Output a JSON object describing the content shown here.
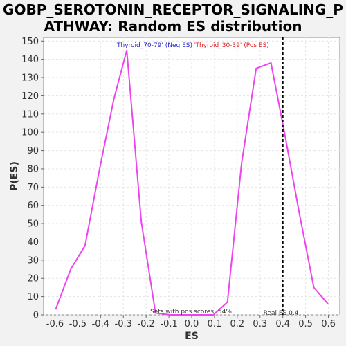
{
  "chart_data": {
    "type": "line",
    "title_line1": "GOBP_SEROTONIN_RECEPTOR_SIGNALING_P",
    "title_line2": "ATHWAY: Random ES distribution",
    "xlabel": "ES",
    "ylabel": "P(ES)",
    "xlim": [
      -0.65,
      0.65
    ],
    "ylim": [
      0,
      152
    ],
    "x_ticks": [
      -0.6,
      -0.5,
      -0.4,
      -0.3,
      -0.2,
      -0.1,
      0.0,
      0.1,
      0.2,
      0.3,
      0.4,
      0.5,
      0.6
    ],
    "x_tick_labels": [
      "-0.6",
      "-0.5",
      "-0.4",
      "-0.3",
      "-0.2",
      "-0.1",
      "0.0",
      "0.1",
      "0.2",
      "0.3",
      "0.4",
      "0.5",
      "0.6"
    ],
    "y_ticks": [
      0,
      10,
      20,
      30,
      40,
      50,
      60,
      70,
      80,
      90,
      100,
      110,
      120,
      130,
      140,
      150
    ],
    "y_tick_labels": [
      "0",
      "10",
      "20",
      "30",
      "40",
      "50",
      "60",
      "70",
      "80",
      "90",
      "100",
      "110",
      "120",
      "130",
      "140",
      "150"
    ],
    "grid": true,
    "series": [
      {
        "color": "#ee44ee",
        "x": [
          -0.597,
          -0.531,
          -0.468,
          -0.404,
          -0.342,
          -0.285,
          -0.221,
          -0.159,
          -0.095,
          -0.032,
          0.032,
          0.095,
          0.157,
          0.219,
          0.283,
          0.348,
          0.41,
          0.472,
          0.536,
          0.598
        ],
        "y": [
          3,
          25,
          38,
          80,
          118,
          145,
          51,
          1,
          0,
          0,
          0,
          0,
          7,
          83,
          135,
          138,
          98,
          56,
          15,
          6
        ]
      }
    ],
    "real_es": 0.4,
    "real_es_color": "#000000",
    "neg_label": "'Thyroid_70-79' (Neg ES)",
    "neg_label_color": "#2222cc",
    "pos_label": "'Thyroid_30-39' (Pos ES)",
    "pos_label_color": "#dd2222",
    "sets_pos_text": "Sets with pos scores: 54%",
    "real_es_text": "Real ES 0.4"
  }
}
